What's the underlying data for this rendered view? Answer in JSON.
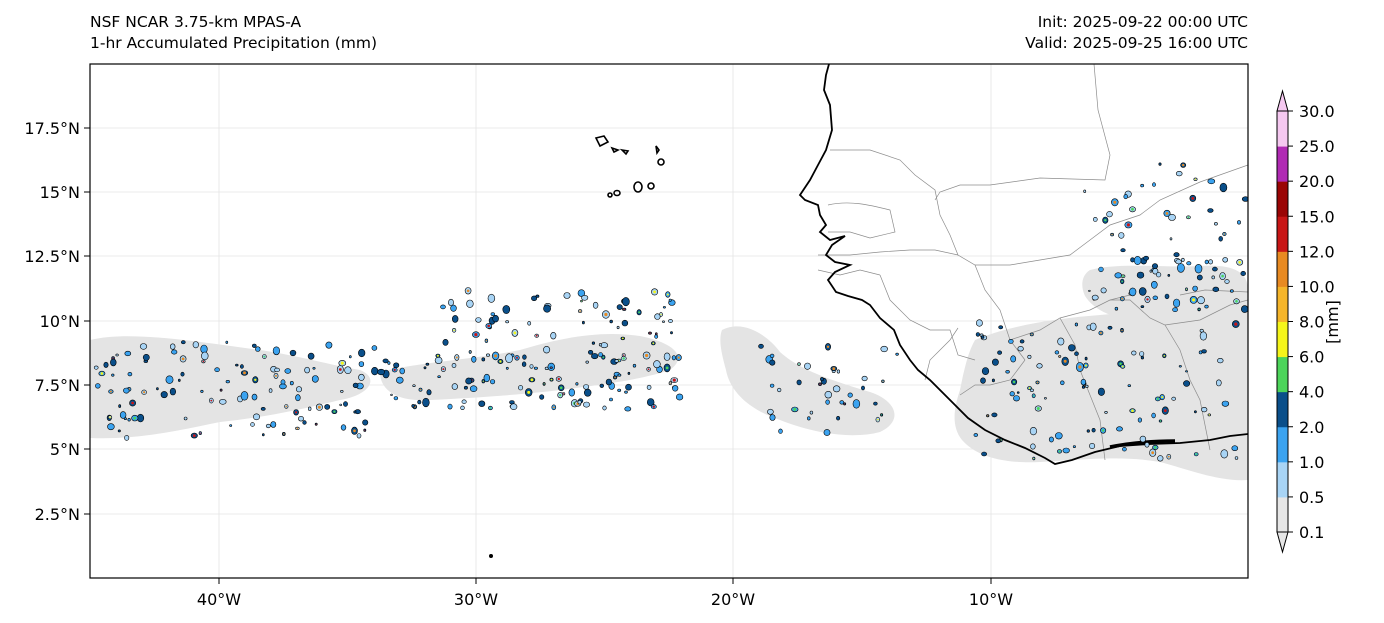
{
  "header": {
    "title_left_1": "NSF NCAR 3.75-km MPAS-A",
    "title_left_2": "1-hr Accumulated Precipitation (mm)",
    "title_right_1": "Init: 2025-09-22 00:00 UTC",
    "title_right_2": "Valid: 2025-09-25 16:00 UTC"
  },
  "map": {
    "projection": "PlateCarree",
    "lon_range": [
      -45,
      0
    ],
    "lat_range": [
      0,
      20
    ],
    "lon_ticks": [
      "40°W",
      "30°W",
      "20°W",
      "10°W"
    ],
    "lat_ticks": [
      "17.5°N",
      "15°N",
      "12.5°N",
      "10°N",
      "7.5°N",
      "5°N",
      "2.5°N"
    ],
    "gridlines": true,
    "features": [
      "coastline",
      "country borders",
      "Cape Verde islands"
    ]
  },
  "colorbar": {
    "label": "[mm]",
    "levels": [
      "0.1",
      "0.5",
      "1.0",
      "2.0",
      "4.0",
      "6.0",
      "8.0",
      "10.0",
      "12.0",
      "15.0",
      "20.0",
      "25.0",
      "30.0"
    ],
    "colors": [
      "#e6e6e6",
      "#a8d4f5",
      "#3ba3f0",
      "#0a4f8a",
      "#4cd45a",
      "#f5f51a",
      "#f5b52a",
      "#e88a22",
      "#c81616",
      "#9a0505",
      "#b02ab3",
      "#f5c8f0"
    ],
    "extend": "both"
  }
}
